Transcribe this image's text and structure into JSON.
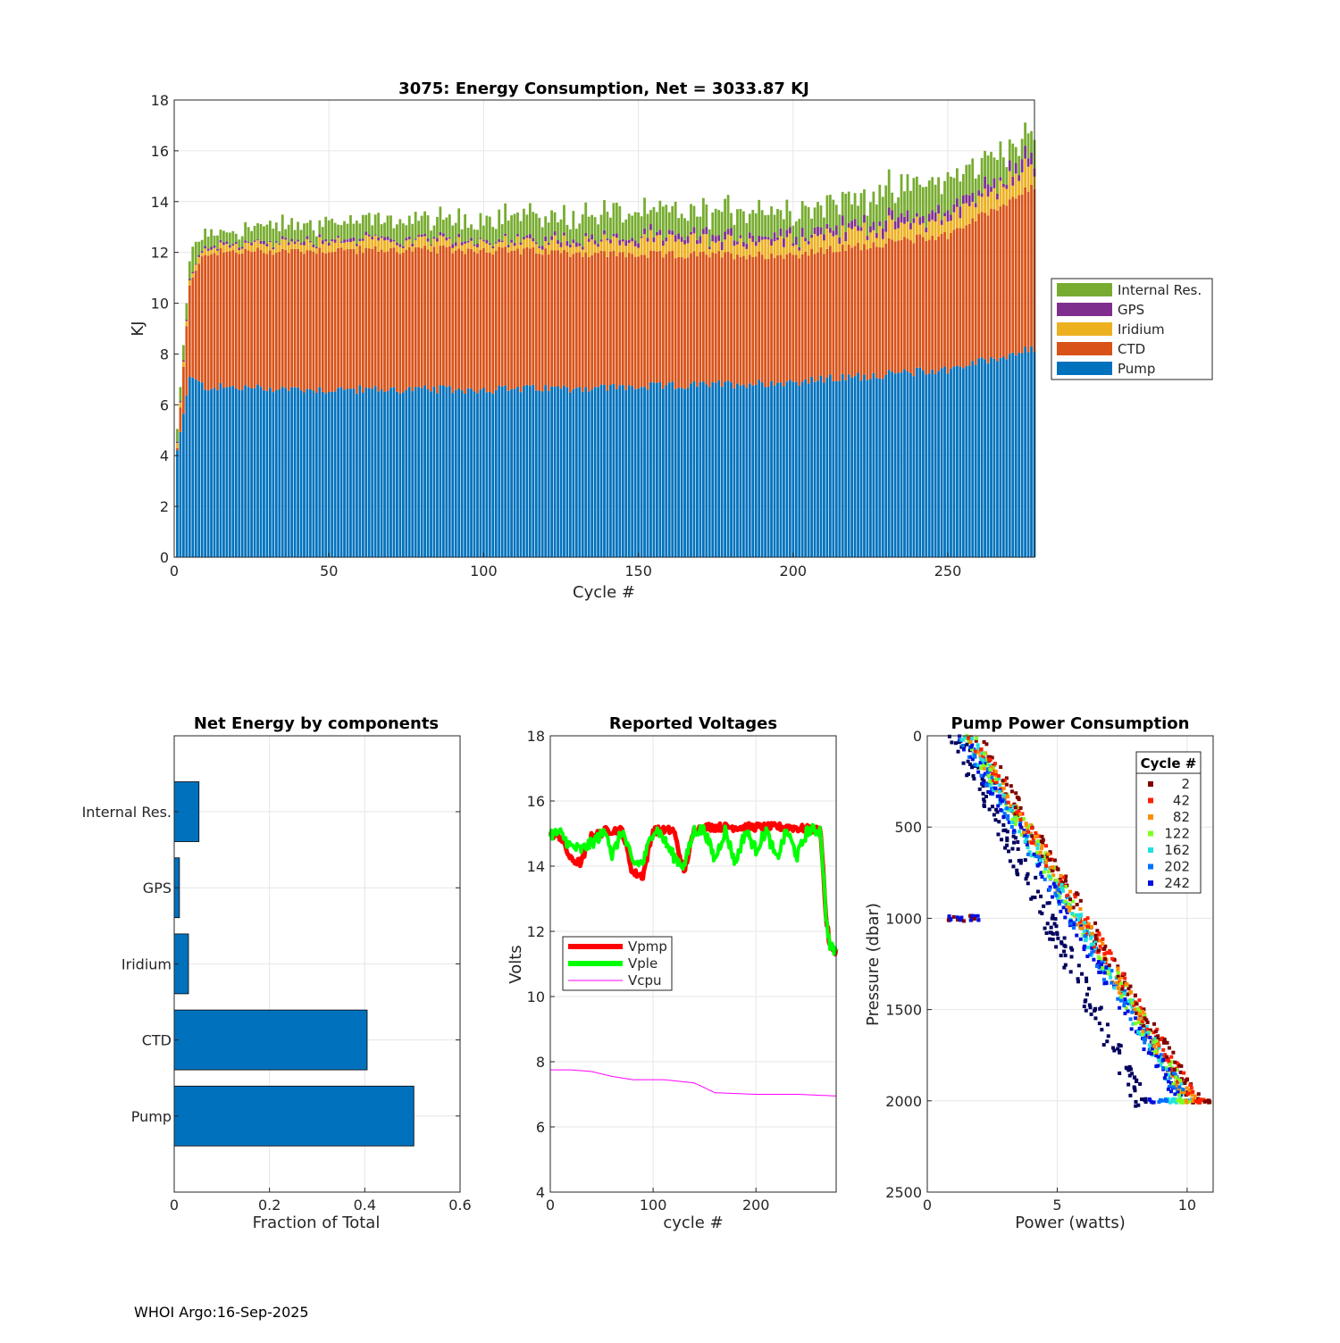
{
  "footer": "WHOI Argo:16-Sep-2025",
  "colors": {
    "pump": "#0072BD",
    "ctd": "#D95319",
    "iridium": "#EDB120",
    "gps": "#7E2F8E",
    "internal": "#77AC30",
    "vpmp": "#FF0000",
    "vple": "#00FF00",
    "vcpu": "#FF00FF"
  },
  "chart_data": [
    {
      "type": "bar",
      "stacked": true,
      "title": "3075: Energy Consumption,  Net = 3033.87 KJ",
      "xlabel": "Cycle #",
      "ylabel": "KJ",
      "xlim": [
        0,
        278
      ],
      "ylim": [
        0,
        18
      ],
      "xticks": [
        "0",
        "50",
        "100",
        "150",
        "200",
        "250"
      ],
      "yticks": [
        "0",
        "2",
        "4",
        "6",
        "8",
        "10",
        "12",
        "14",
        "16",
        "18"
      ],
      "legend": [
        "Internal Res.",
        "GPS",
        "Iridium",
        "CTD",
        "Pump"
      ],
      "legend_position": "outside-right",
      "n_cycles": 278,
      "series_keyframes": {
        "cycle": [
          1,
          5,
          10,
          50,
          100,
          150,
          200,
          250,
          278
        ],
        "Pump": [
          4.2,
          7.1,
          6.7,
          6.6,
          6.6,
          6.7,
          6.9,
          7.4,
          8.2
        ],
        "CTD": [
          0.1,
          3.6,
          5.3,
          5.5,
          5.5,
          5.2,
          5.0,
          5.3,
          6.4
        ],
        "Iridium": [
          0.2,
          0.2,
          0.2,
          0.35,
          0.3,
          0.55,
          0.55,
          0.65,
          0.8
        ],
        "GPS": [
          0.05,
          0.05,
          0.07,
          0.1,
          0.1,
          0.15,
          0.25,
          0.3,
          0.35
        ],
        "Internal Res.": [
          0.5,
          0.7,
          0.5,
          0.6,
          0.8,
          0.9,
          1.0,
          1.1,
          0.9
        ]
      }
    },
    {
      "type": "bar",
      "orientation": "horizontal",
      "title": "Net Energy by components",
      "xlabel": "Fraction of Total",
      "categories": [
        "Internal Res.",
        "GPS",
        "Iridium",
        "CTD",
        "Pump"
      ],
      "values": [
        0.052,
        0.011,
        0.03,
        0.405,
        0.503
      ],
      "xlim": [
        0,
        0.6
      ],
      "xticks": [
        "0",
        "0.2",
        "0.4",
        "0.6"
      ]
    },
    {
      "type": "line",
      "title": "Reported Voltages",
      "xlabel": "cycle #",
      "ylabel": "Volts",
      "xlim": [
        0,
        278
      ],
      "ylim": [
        4,
        18
      ],
      "xticks": [
        "0",
        "100",
        "200"
      ],
      "yticks": [
        "4",
        "6",
        "8",
        "10",
        "12",
        "14",
        "16",
        "18"
      ],
      "legend_position": "left",
      "series": [
        {
          "name": "Vpmp",
          "x": [
            0,
            10,
            20,
            30,
            40,
            55,
            70,
            80,
            90,
            100,
            105,
            120,
            130,
            140,
            150,
            170,
            200,
            230,
            263,
            268,
            272,
            278
          ],
          "y": [
            15.0,
            14.9,
            14.2,
            14.1,
            14.9,
            15.1,
            15.1,
            13.8,
            13.7,
            15.1,
            15.1,
            15.1,
            13.8,
            15.1,
            15.2,
            15.2,
            15.2,
            15.2,
            15.1,
            12.5,
            11.5,
            11.4
          ]
        },
        {
          "name": "Vple",
          "x": [
            0,
            10,
            20,
            30,
            40,
            55,
            60,
            70,
            80,
            90,
            100,
            105,
            120,
            130,
            140,
            150,
            160,
            170,
            180,
            190,
            200,
            210,
            220,
            230,
            240,
            250,
            263,
            268,
            272,
            278
          ],
          "y": [
            15.0,
            15.0,
            14.6,
            14.5,
            14.7,
            15.1,
            14.3,
            15.1,
            14.1,
            14.1,
            15.1,
            15.1,
            14.3,
            14.0,
            15.1,
            15.1,
            14.2,
            15.1,
            14.1,
            15.1,
            14.5,
            15.1,
            14.2,
            15.1,
            14.3,
            15.1,
            15.1,
            12.5,
            11.5,
            11.4
          ]
        },
        {
          "name": "Vcpu",
          "x": [
            0,
            20,
            40,
            60,
            80,
            110,
            140,
            160,
            200,
            240,
            278
          ],
          "y": [
            7.75,
            7.75,
            7.7,
            7.55,
            7.45,
            7.45,
            7.35,
            7.05,
            7.0,
            7.0,
            6.95
          ]
        }
      ]
    },
    {
      "type": "scatter",
      "title": "Pump Power Consumption",
      "xlabel": "Power (watts)",
      "ylabel": "Pressure (dbar)",
      "xlim": [
        0,
        11
      ],
      "ylim": [
        0,
        2500
      ],
      "y_reversed": true,
      "xticks": [
        "0",
        "5",
        "10"
      ],
      "yticks": [
        "0",
        "500",
        "1000",
        "1500",
        "2000",
        "2500"
      ],
      "legend_title": "Cycle #",
      "legend": [
        "2",
        "42",
        "82",
        "122",
        "162",
        "202",
        "242"
      ],
      "legend_colors": [
        "#7F0000",
        "#FF2000",
        "#FF8C00",
        "#80FF20",
        "#20E0E0",
        "#0070FF",
        "#0010E0"
      ],
      "main_band": {
        "power_at_0": 1.3,
        "power_at_2000": 9.8
      },
      "dark_band": {
        "power_at_0": 1.1,
        "power_at_2000": 8.2
      },
      "outlier_cluster": {
        "pressure": 1000,
        "power_from": 0.7,
        "power_to": 2.0
      }
    }
  ]
}
